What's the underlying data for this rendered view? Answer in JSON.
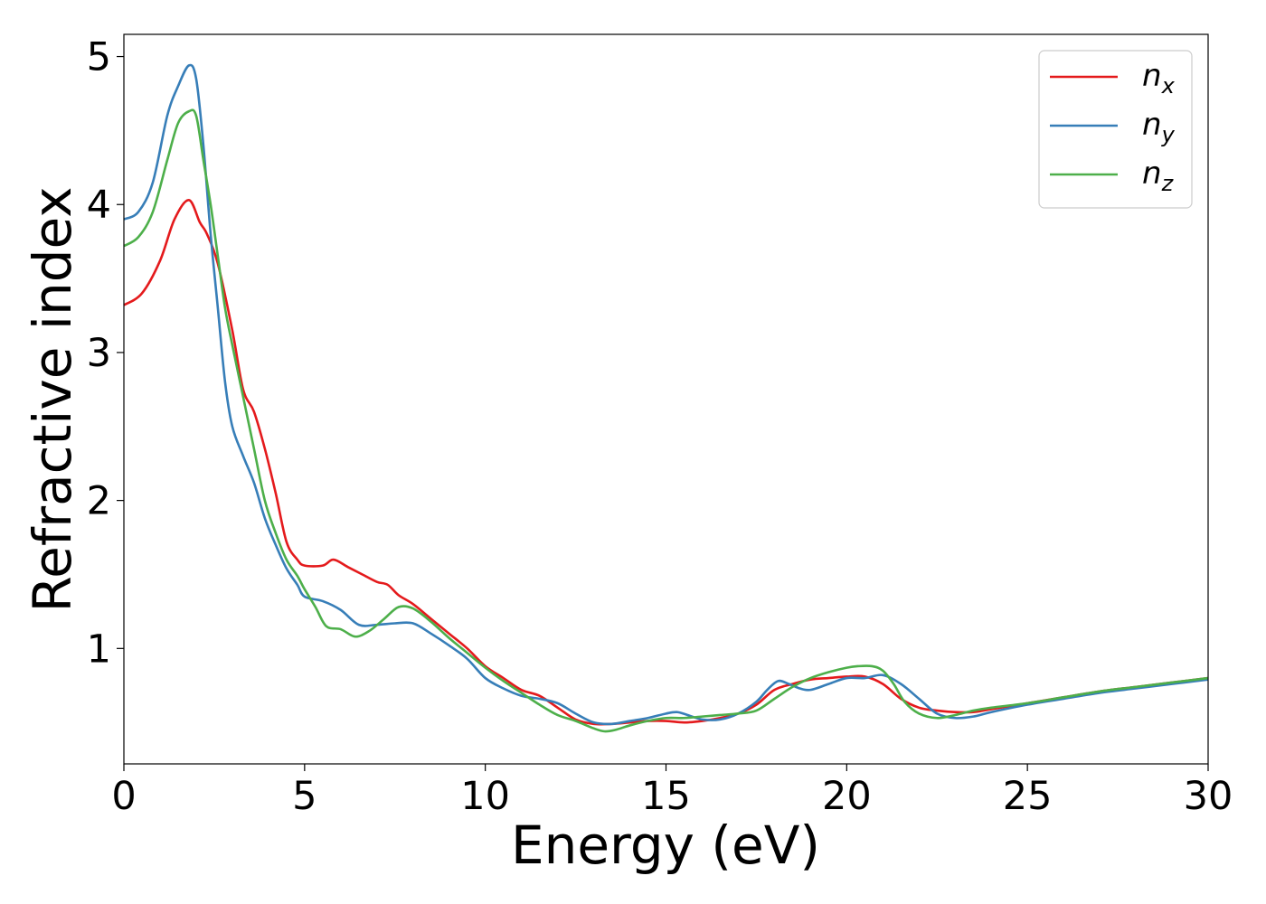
{
  "chart_data": {
    "type": "line",
    "xlabel": "Energy (eV)",
    "ylabel": "Refractive index",
    "xlim": [
      0,
      30
    ],
    "ylim": [
      0.22,
      5.15
    ],
    "xticks": [
      0,
      5,
      10,
      15,
      20,
      25,
      30
    ],
    "xtick_labels": [
      "0",
      "5",
      "10",
      "15",
      "20",
      "25",
      "30"
    ],
    "yticks": [
      1,
      2,
      3,
      4,
      5
    ],
    "ytick_labels": [
      "1",
      "2",
      "3",
      "4",
      "5"
    ],
    "grid": false,
    "legend_position": "top-right",
    "series": [
      {
        "name": "n",
        "subscript": "x",
        "color": "#e41a1c",
        "x": [
          0,
          0.5,
          1.0,
          1.4,
          1.8,
          2.1,
          2.3,
          2.6,
          3.0,
          3.3,
          3.6,
          3.9,
          4.2,
          4.5,
          4.8,
          5.0,
          5.5,
          5.8,
          6.2,
          6.6,
          7.0,
          7.3,
          7.6,
          8.0,
          8.5,
          9.0,
          9.5,
          10.0,
          10.5,
          11.0,
          11.5,
          12.0,
          12.5,
          13.0,
          13.5,
          14.0,
          14.5,
          15.0,
          15.5,
          16.0,
          16.5,
          17.0,
          17.5,
          18.0,
          18.5,
          19.0,
          19.5,
          20.0,
          20.5,
          21.0,
          21.5,
          22.0,
          22.5,
          23.0,
          23.5,
          24.0,
          25.0,
          26.0,
          27.0,
          28.0,
          29.0,
          30.0
        ],
        "values": [
          3.32,
          3.4,
          3.62,
          3.9,
          4.03,
          3.88,
          3.8,
          3.6,
          3.15,
          2.75,
          2.6,
          2.35,
          2.05,
          1.72,
          1.6,
          1.56,
          1.56,
          1.6,
          1.55,
          1.5,
          1.45,
          1.43,
          1.36,
          1.3,
          1.2,
          1.1,
          1.0,
          0.88,
          0.8,
          0.72,
          0.68,
          0.6,
          0.52,
          0.49,
          0.49,
          0.5,
          0.51,
          0.51,
          0.5,
          0.51,
          0.53,
          0.56,
          0.62,
          0.72,
          0.76,
          0.79,
          0.8,
          0.81,
          0.81,
          0.76,
          0.66,
          0.6,
          0.58,
          0.57,
          0.57,
          0.59,
          0.63,
          0.67,
          0.71,
          0.74,
          0.77,
          0.8
        ]
      },
      {
        "name": "n",
        "subscript": "y",
        "color": "#377eb8",
        "x": [
          0,
          0.4,
          0.8,
          1.2,
          1.5,
          1.8,
          2.0,
          2.2,
          2.4,
          2.6,
          2.8,
          3.0,
          3.3,
          3.6,
          3.9,
          4.2,
          4.5,
          4.8,
          5.0,
          5.5,
          6.0,
          6.5,
          7.0,
          7.5,
          8.0,
          8.5,
          9.0,
          9.5,
          10.0,
          10.5,
          11.0,
          11.5,
          12.0,
          12.5,
          13.0,
          13.5,
          14.0,
          14.5,
          15.0,
          15.3,
          15.6,
          16.0,
          16.5,
          17.0,
          17.5,
          17.8,
          18.1,
          18.4,
          18.7,
          19.0,
          19.5,
          20.0,
          20.5,
          21.0,
          21.5,
          22.0,
          22.5,
          23.0,
          23.5,
          24.0,
          25.0,
          26.0,
          27.0,
          28.0,
          29.0,
          30.0
        ],
        "values": [
          3.9,
          3.95,
          4.15,
          4.6,
          4.8,
          4.94,
          4.85,
          4.4,
          3.8,
          3.3,
          2.8,
          2.5,
          2.3,
          2.12,
          1.88,
          1.7,
          1.54,
          1.43,
          1.35,
          1.32,
          1.26,
          1.16,
          1.16,
          1.17,
          1.17,
          1.1,
          1.02,
          0.93,
          0.8,
          0.73,
          0.68,
          0.66,
          0.63,
          0.56,
          0.5,
          0.49,
          0.51,
          0.53,
          0.56,
          0.57,
          0.55,
          0.52,
          0.52,
          0.56,
          0.64,
          0.72,
          0.78,
          0.76,
          0.73,
          0.72,
          0.76,
          0.8,
          0.8,
          0.82,
          0.76,
          0.66,
          0.56,
          0.53,
          0.54,
          0.57,
          0.62,
          0.66,
          0.7,
          0.73,
          0.76,
          0.79
        ]
      },
      {
        "name": "n",
        "subscript": "z",
        "color": "#4daf4a",
        "x": [
          0,
          0.4,
          0.8,
          1.2,
          1.5,
          1.8,
          2.0,
          2.2,
          2.4,
          2.6,
          2.8,
          3.0,
          3.3,
          3.6,
          3.9,
          4.2,
          4.5,
          4.8,
          5.0,
          5.3,
          5.6,
          6.0,
          6.4,
          6.8,
          7.2,
          7.6,
          8.0,
          8.5,
          9.0,
          9.5,
          10.0,
          10.5,
          11.0,
          11.5,
          12.0,
          12.5,
          13.0,
          13.3,
          13.6,
          14.0,
          14.5,
          15.0,
          15.5,
          16.0,
          16.5,
          17.0,
          17.5,
          18.0,
          18.5,
          19.0,
          19.5,
          20.0,
          20.3,
          20.7,
          21.0,
          21.3,
          21.6,
          22.0,
          22.5,
          23.0,
          23.5,
          24.0,
          25.0,
          26.0,
          27.0,
          28.0,
          29.0,
          30.0
        ],
        "values": [
          3.72,
          3.78,
          3.95,
          4.3,
          4.55,
          4.63,
          4.6,
          4.3,
          4.0,
          3.65,
          3.3,
          3.05,
          2.7,
          2.35,
          2.0,
          1.78,
          1.6,
          1.49,
          1.4,
          1.28,
          1.15,
          1.13,
          1.08,
          1.12,
          1.2,
          1.28,
          1.27,
          1.18,
          1.07,
          0.97,
          0.87,
          0.78,
          0.7,
          0.62,
          0.55,
          0.51,
          0.46,
          0.44,
          0.45,
          0.48,
          0.51,
          0.53,
          0.53,
          0.54,
          0.55,
          0.56,
          0.58,
          0.66,
          0.74,
          0.8,
          0.84,
          0.87,
          0.88,
          0.88,
          0.85,
          0.76,
          0.64,
          0.56,
          0.53,
          0.55,
          0.58,
          0.6,
          0.63,
          0.67,
          0.71,
          0.74,
          0.77,
          0.8
        ]
      }
    ]
  }
}
